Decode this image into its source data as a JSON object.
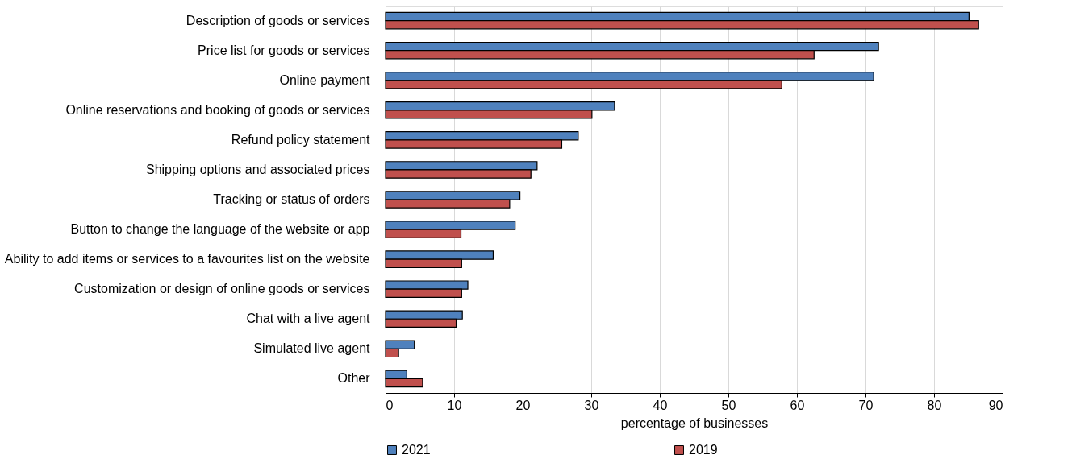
{
  "chart_data": {
    "type": "bar",
    "orientation": "horizontal",
    "xlabel": "percentage of businesses",
    "categories": [
      "Description of goods or services",
      "Price list for goods or services",
      "Online payment",
      "Online reservations and booking of goods or services",
      "Refund policy statement",
      "Shipping options and associated prices",
      "Tracking or status of orders",
      "Button to change the language of the website or app",
      "Ability to add items or services to a favourites list on the website",
      "Customization or design of online goods or services",
      "Chat with a live agent",
      "Simulated live agent",
      "Other"
    ],
    "series": [
      {
        "name": "2021",
        "color": "#4f81bd",
        "values": [
          85.1,
          71.9,
          71.2,
          33.4,
          28.1,
          22.1,
          19.6,
          18.9,
          15.7,
          12.0,
          11.2,
          4.2,
          3.1
        ]
      },
      {
        "name": "2019",
        "color": "#c0504d",
        "values": [
          86.5,
          62.5,
          57.8,
          30.1,
          25.7,
          21.2,
          18.1,
          11.0,
          11.1,
          11.1,
          10.3,
          1.9,
          5.4
        ]
      }
    ],
    "xlim": [
      0,
      90
    ],
    "xticks": [
      0,
      10,
      20,
      30,
      40,
      50,
      60,
      70,
      80,
      90
    ],
    "grid": "x",
    "legend": "bottom"
  }
}
